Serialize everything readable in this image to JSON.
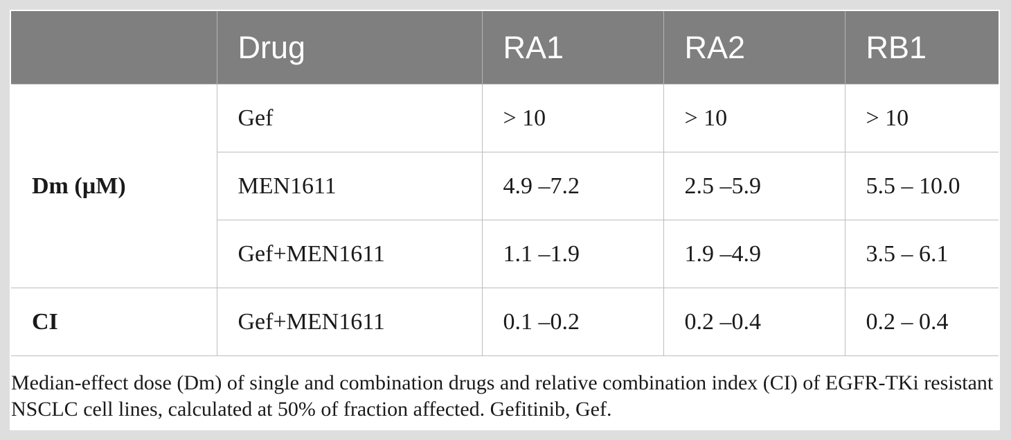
{
  "table": {
    "headers": [
      "",
      "Drug",
      "RA1",
      "RA2",
      "RB1"
    ],
    "groups": [
      {
        "label": "Dm (µM)",
        "rows": [
          {
            "drug": "Gef",
            "values": [
              "> 10",
              "> 10",
              "> 10"
            ]
          },
          {
            "drug": "MEN1611",
            "values": [
              "4.9 –7.2",
              "2.5 –5.9",
              "5.5 – 10.0"
            ]
          },
          {
            "drug": "Gef+MEN1611",
            "values": [
              "1.1 –1.9",
              "1.9 –4.9",
              "3.5 – 6.1"
            ]
          }
        ]
      },
      {
        "label": "CI",
        "rows": [
          {
            "drug": "Gef+MEN1611",
            "values": [
              "0.1 –0.2",
              "0.2 –0.4",
              "0.2 – 0.4"
            ]
          }
        ]
      }
    ]
  },
  "caption": "Median-effect dose (Dm) of single and combination drugs and relative combination index (CI) of EGFR-TKi resistant NSCLC cell lines, calculated at 50% of fraction affected. Gefitinib, Gef."
}
